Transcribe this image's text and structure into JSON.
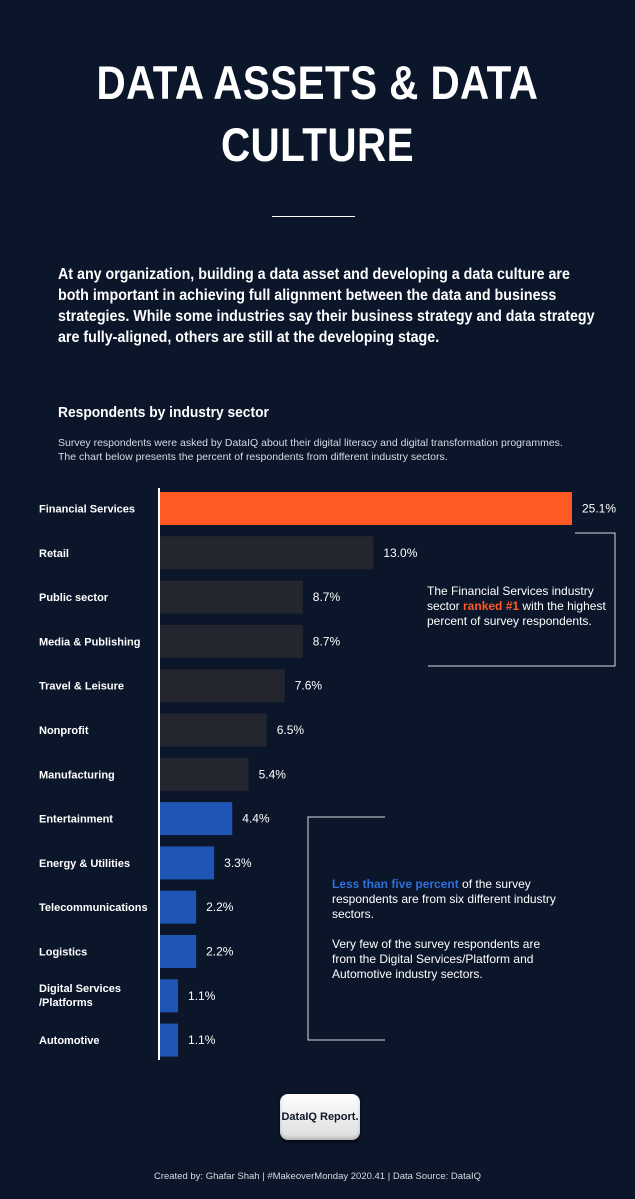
{
  "header": {
    "title_line1": "DATA ASSETS & DATA",
    "title_line2": "CULTURE",
    "intro": "At any organization, building a data asset and developing a data culture are both important in achieving full alignment between the data and business strategies.  While some industries say their business strategy and data strategy are fully-aligned, others are still at the developing stage."
  },
  "section": {
    "title": "Respondents by industry sector",
    "description": "Survey respondents were asked by DataIQ about their digital literacy and digital transformation programmes. The chart below presents the percent of respondents from different industry sectors."
  },
  "colors": {
    "background": "#0b162a",
    "highlight": "#ff5a23",
    "neutral": "#23262e",
    "low": "#1f55b4"
  },
  "chart_data": {
    "type": "bar",
    "orientation": "horizontal",
    "title": "Respondents by industry sector",
    "unit": "%",
    "xlim": [
      0,
      25.1
    ],
    "categories": [
      "Financial Services",
      "Retail",
      "Public sector",
      "Media & Publishing",
      "Travel & Leisure",
      "Nonprofit",
      "Manufacturing",
      "Entertainment",
      "Energy & Utilities",
      "Telecommunications",
      "Logistics",
      "Digital Services /Platforms",
      "Automotive"
    ],
    "values": [
      25.1,
      13.0,
      8.7,
      8.7,
      7.6,
      6.5,
      5.4,
      4.4,
      3.3,
      2.2,
      2.2,
      1.1,
      1.1
    ],
    "value_labels": [
      "25.1%",
      "13.0%",
      "8.7%",
      "8.7%",
      "7.6%",
      "6.5%",
      "5.4%",
      "4.4%",
      "3.3%",
      "2.2%",
      "2.2%",
      "1.1%",
      "1.1%"
    ],
    "groups": [
      "highlight",
      "neutral",
      "neutral",
      "neutral",
      "neutral",
      "neutral",
      "neutral",
      "low",
      "low",
      "low",
      "low",
      "low",
      "low"
    ]
  },
  "annotations": {
    "top": {
      "before": "The Financial Services industry sector ",
      "highlight": "ranked #1",
      "after": " with the highest percent of survey respondents."
    },
    "bottom": {
      "highlight": "Less than five percent",
      "after": " of the survey respondents are from six different industry sectors.",
      "second": "Very few of the survey respondents are from the Digital Services/Platform and Automotive industry sectors."
    }
  },
  "badge": {
    "label": "DataIQ Report."
  },
  "footer": {
    "text": "Created by: Ghafar Shah  |  #MakeoverMonday 2020.41  |  Data Source: DataIQ"
  }
}
